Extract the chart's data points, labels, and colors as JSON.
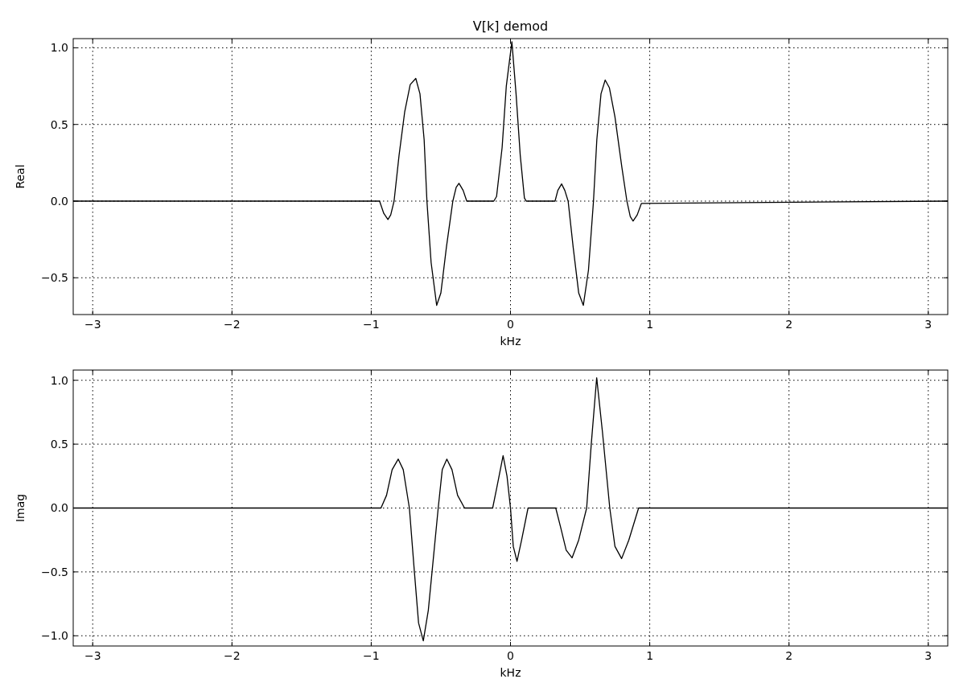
{
  "chart_data": [
    {
      "type": "line",
      "title": "V[k] demod",
      "xlabel": "kHz",
      "ylabel": "Real",
      "xlim": [
        -3.14,
        3.14
      ],
      "ylim": [
        -0.74,
        1.06
      ],
      "grid": true,
      "line_style": "solid",
      "marker": "none",
      "xticks": [
        {
          "value": -3,
          "label": "−3"
        },
        {
          "value": -2,
          "label": "−2"
        },
        {
          "value": -1,
          "label": "−1"
        },
        0,
        1,
        2,
        3
      ],
      "yticks": [
        {
          "value": -0.5,
          "label": "−0.5"
        },
        {
          "value": 0,
          "label": "0.0"
        },
        {
          "value": 0.5,
          "label": "0.5"
        },
        {
          "value": 1,
          "label": "1.0"
        }
      ],
      "series": [
        {
          "color": "#000000",
          "x": [
            -3.14,
            -0.94,
            -0.91,
            -0.88,
            -0.86,
            -0.836,
            -0.8,
            -0.76,
            -0.72,
            -0.68,
            -0.65,
            -0.62,
            -0.6,
            -0.57,
            -0.53,
            -0.5,
            -0.46,
            -0.414,
            -0.39,
            -0.37,
            -0.34,
            -0.314,
            -0.12,
            -0.1,
            -0.06,
            -0.03,
            0.01,
            0.04,
            0.07,
            0.1,
            0.113,
            0.32,
            0.34,
            0.367,
            0.39,
            0.414,
            0.45,
            0.49,
            0.523,
            0.56,
            0.596,
            0.62,
            0.65,
            0.68,
            0.71,
            0.75,
            0.8,
            0.836,
            0.86,
            0.88,
            0.91,
            0.94,
            3.14
          ],
          "values": [
            0,
            0,
            -0.08,
            -0.12,
            -0.09,
            0,
            0.3,
            0.58,
            0.76,
            0.8,
            0.7,
            0.4,
            0,
            -0.4,
            -0.68,
            -0.6,
            -0.3,
            0,
            0.09,
            0.116,
            0.07,
            0,
            0,
            0.03,
            0.35,
            0.75,
            1.04,
            0.7,
            0.3,
            0.02,
            0,
            0,
            0.07,
            0.112,
            0.07,
            0,
            -0.3,
            -0.6,
            -0.68,
            -0.45,
            0,
            0.4,
            0.7,
            0.79,
            0.74,
            0.55,
            0.22,
            0,
            -0.1,
            -0.13,
            -0.09,
            -0.015,
            0
          ]
        }
      ]
    },
    {
      "type": "line",
      "xlabel": "kHz",
      "ylabel": "Imag",
      "xlim": [
        -3.14,
        3.14
      ],
      "ylim": [
        -1.08,
        1.08
      ],
      "grid": true,
      "line_style": "solid",
      "marker": "none",
      "xticks": [
        {
          "value": -3,
          "label": "−3"
        },
        {
          "value": -2,
          "label": "−2"
        },
        {
          "value": -1,
          "label": "−1"
        },
        0,
        1,
        2,
        3
      ],
      "yticks": [
        {
          "value": -1,
          "label": "−1.0"
        },
        {
          "value": -0.5,
          "label": "−0.5"
        },
        {
          "value": 0,
          "label": "0.0"
        },
        {
          "value": 0.5,
          "label": "0.5"
        },
        {
          "value": 1,
          "label": "1.0"
        }
      ],
      "series": [
        {
          "color": "#000000",
          "x": [
            -3.14,
            -0.93,
            -0.89,
            -0.85,
            -0.806,
            -0.77,
            -0.726,
            -0.69,
            -0.66,
            -0.626,
            -0.59,
            -0.55,
            -0.519,
            -0.49,
            -0.457,
            -0.42,
            -0.38,
            -0.33,
            -0.128,
            -0.1,
            -0.053,
            -0.025,
            0,
            0.02,
            0.047,
            0.08,
            0.126,
            0.325,
            0.36,
            0.4,
            0.442,
            0.49,
            0.547,
            0.58,
            0.619,
            0.66,
            0.713,
            0.75,
            0.798,
            0.85,
            0.92,
            3.14
          ],
          "values": [
            0,
            0,
            0.1,
            0.3,
            0.383,
            0.3,
            0,
            -0.5,
            -0.9,
            -1.04,
            -0.8,
            -0.35,
            0,
            0.3,
            0.383,
            0.3,
            0.1,
            0,
            0,
            0.15,
            0.41,
            0.25,
            0,
            -0.3,
            -0.417,
            -0.25,
            0,
            0,
            -0.15,
            -0.33,
            -0.39,
            -0.25,
            0,
            0.5,
            1.02,
            0.6,
            0,
            -0.3,
            -0.396,
            -0.25,
            0,
            0
          ]
        }
      ]
    }
  ]
}
